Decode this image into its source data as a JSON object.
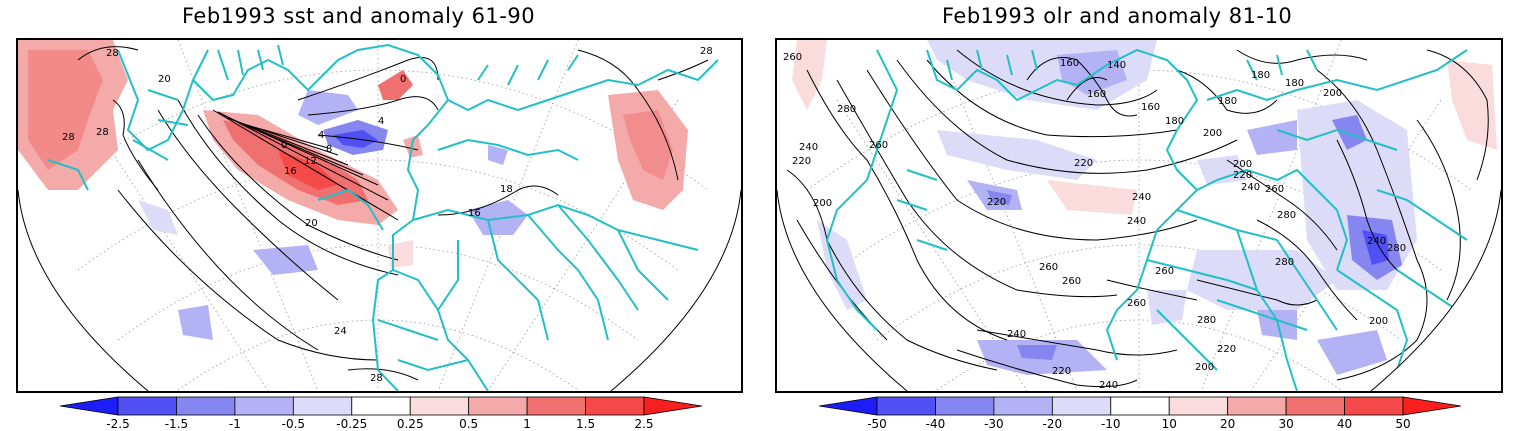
{
  "panels": [
    {
      "title": "Feb1993 sst and anomaly 61-90",
      "contour_labels": [
        "28",
        "28",
        "28",
        "28",
        "20",
        "0",
        "4",
        "4",
        "0",
        "8",
        "12",
        "16",
        "18",
        "16",
        "20",
        "24",
        "28"
      ],
      "colorbar": {
        "ticks": [
          "-2.5",
          "-1.5",
          "-1",
          "-0.5",
          "-0.25",
          "0.25",
          "0.5",
          "1",
          "1.5",
          "2.5"
        ],
        "colors": [
          "#1d1dfa",
          "#5050f5",
          "#8686f0",
          "#b2b2f5",
          "#dcdcf8",
          "#ffffff",
          "#fadcdc",
          "#f5aaaa",
          "#f07070",
          "#f54a4a",
          "#fa1f1f"
        ]
      }
    },
    {
      "title": "Feb1993 olr and anomaly 81-10",
      "contour_labels": [
        "260",
        "280",
        "240",
        "220",
        "260",
        "200",
        "160",
        "140",
        "160",
        "160",
        "180",
        "180",
        "180",
        "180",
        "200",
        "200",
        "220",
        "220",
        "200",
        "220",
        "240",
        "240",
        "260",
        "260",
        "280",
        "280",
        "240",
        "240",
        "280",
        "260",
        "260",
        "260",
        "280",
        "220",
        "200",
        "200",
        "240",
        "220",
        "240"
      ],
      "colorbar": {
        "ticks": [
          "-50",
          "-40",
          "-30",
          "-20",
          "-10",
          "10",
          "20",
          "30",
          "40",
          "50"
        ],
        "colors": [
          "#1d1dfa",
          "#5050f5",
          "#8686f0",
          "#b2b2f5",
          "#dcdcf8",
          "#ffffff",
          "#fadcdc",
          "#f5aaaa",
          "#f07070",
          "#f54a4a",
          "#fa1f1f"
        ]
      }
    }
  ],
  "map_style": {
    "coast_color": "#22c0c6",
    "contour_color": "#000000",
    "grid_color": "#9a9a9a"
  }
}
